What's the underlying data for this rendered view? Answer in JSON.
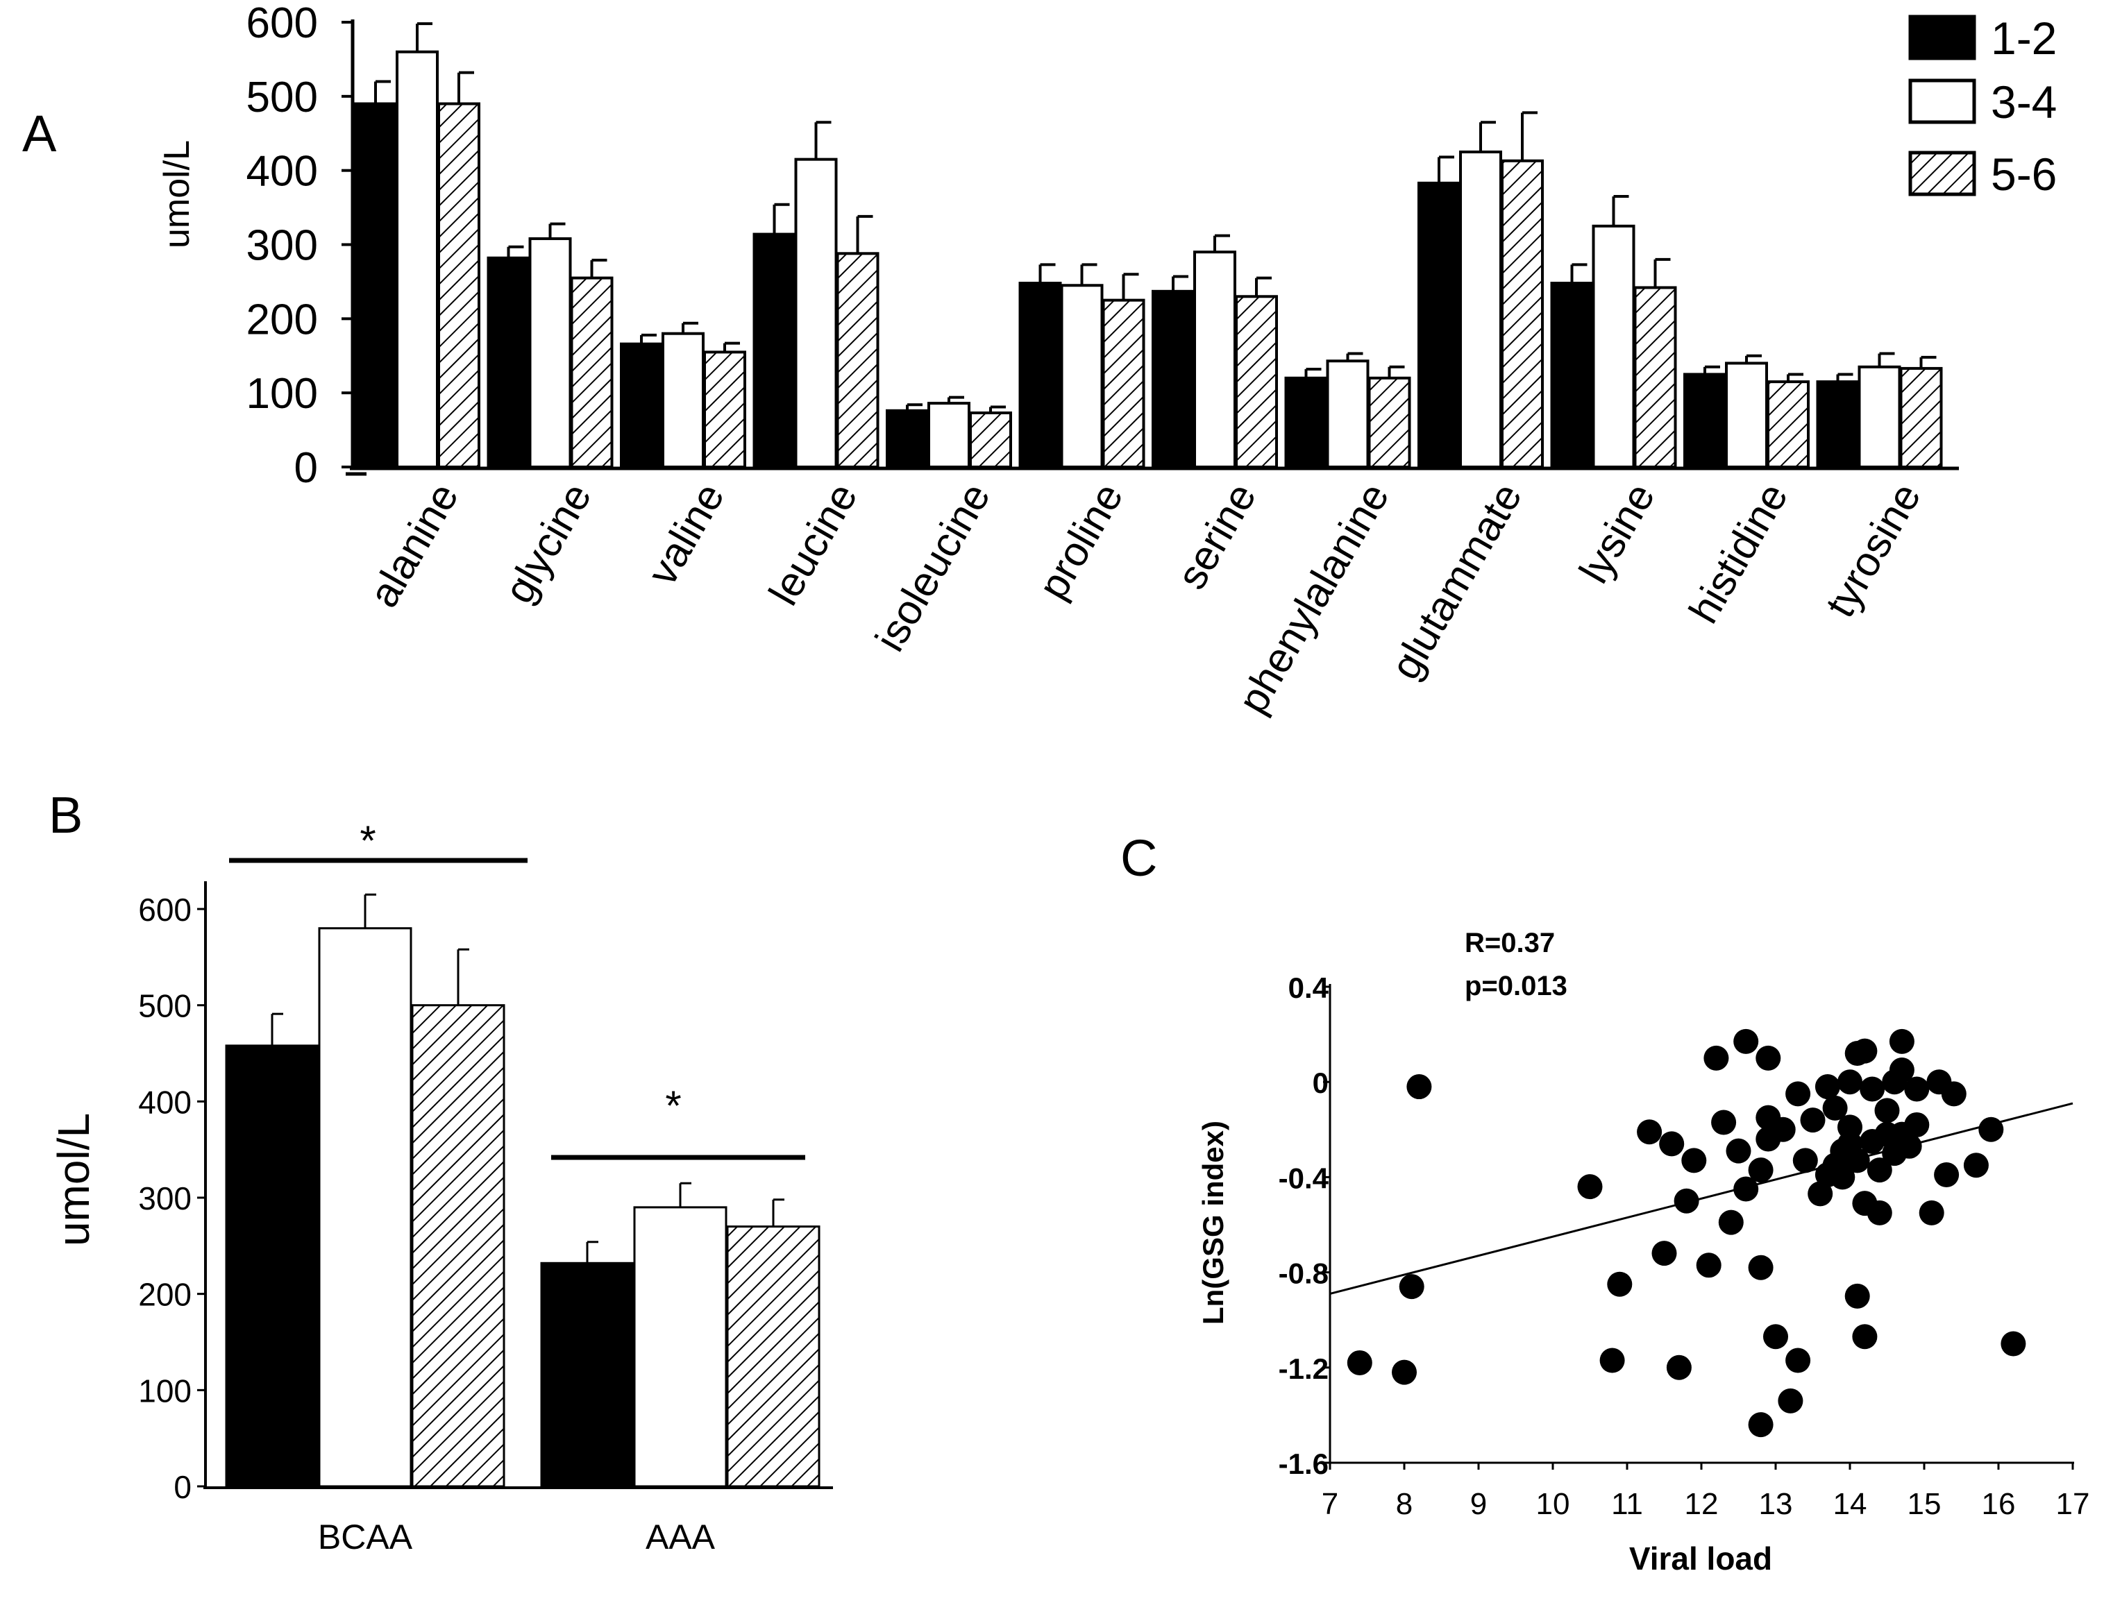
{
  "chart_data": [
    {
      "panel": "A",
      "type": "bar",
      "ylabel": "umol/L",
      "ylim": [
        0,
        600
      ],
      "yticks": [
        0,
        100,
        200,
        300,
        400,
        500,
        600
      ],
      "categories": [
        "alanine",
        "glycine",
        "valine",
        "leucine",
        "isoleucine",
        "proline",
        "serine",
        "phenylalanine",
        "glutammate",
        "lysine",
        "histidine",
        "tyrosine"
      ],
      "series": [
        {
          "name": "1-2",
          "fill": "solid",
          "values": [
            490,
            282,
            166,
            314,
            76,
            248,
            237,
            120,
            383,
            248,
            125,
            115
          ],
          "errors": [
            30,
            15,
            12,
            40,
            8,
            25,
            20,
            12,
            35,
            25,
            10,
            10
          ]
        },
        {
          "name": "3-4",
          "fill": "open",
          "values": [
            560,
            308,
            180,
            415,
            86,
            245,
            290,
            143,
            425,
            325,
            140,
            135
          ],
          "errors": [
            38,
            20,
            14,
            50,
            8,
            28,
            22,
            10,
            40,
            40,
            10,
            18
          ]
        },
        {
          "name": "5-6",
          "fill": "hatched",
          "values": [
            490,
            255,
            155,
            288,
            73,
            225,
            230,
            120,
            413,
            242,
            115,
            133
          ],
          "errors": [
            42,
            24,
            12,
            50,
            8,
            35,
            25,
            15,
            65,
            38,
            10,
            15
          ]
        }
      ],
      "legend": {
        "position": "top-right",
        "entries": [
          "1-2",
          "3-4",
          "5-6"
        ]
      },
      "colors": {
        "solid": "#000000",
        "open": "#ffffff",
        "hatch_line": "#000000"
      }
    },
    {
      "panel": "B",
      "type": "bar",
      "ylabel": "umol/L",
      "ylim": [
        0,
        600
      ],
      "yticks": [
        0,
        100,
        200,
        300,
        400,
        500,
        600
      ],
      "categories": [
        "BCAA",
        "AAA"
      ],
      "series": [
        {
          "name": "1-2",
          "fill": "solid",
          "values": [
            458,
            232
          ],
          "errors": [
            33,
            22
          ]
        },
        {
          "name": "3-4",
          "fill": "open",
          "values": [
            580,
            290
          ],
          "errors": [
            35,
            25
          ]
        },
        {
          "name": "5-6",
          "fill": "hatched",
          "values": [
            500,
            270
          ],
          "errors": [
            58,
            28
          ]
        }
      ],
      "annotations": [
        {
          "text": "*",
          "category": "BCAA"
        },
        {
          "text": "*",
          "category": "AAA"
        }
      ]
    },
    {
      "panel": "C",
      "type": "scatter",
      "xlabel": "Viral load",
      "ylabel": "Ln(GSG index)",
      "xlim": [
        7,
        17
      ],
      "ylim": [
        -1.6,
        0.4
      ],
      "xticks": [
        7,
        8,
        9,
        10,
        11,
        12,
        13,
        14,
        15,
        16,
        17
      ],
      "yticks": [
        {
          "value": 0.4,
          "label": "0.4"
        },
        {
          "value": 0,
          "label": "0"
        },
        {
          "value": -0.4,
          "label": "-0.4"
        },
        {
          "value": -0.8,
          "label": "-0.8"
        },
        {
          "value": -1.2,
          "label": "-1.2"
        },
        {
          "value": -1.6,
          "label": "-1.6"
        }
      ],
      "annotations": [
        "R=0.37",
        "p=0.013"
      ],
      "trendline": {
        "x": [
          7,
          17
        ],
        "y": [
          -0.89,
          -0.09
        ]
      },
      "points": [
        [
          8.2,
          -0.02
        ],
        [
          7.4,
          -1.18
        ],
        [
          8.0,
          -1.22
        ],
        [
          8.1,
          -0.86
        ],
        [
          10.5,
          -0.44
        ],
        [
          10.8,
          -1.17
        ],
        [
          10.9,
          -0.85
        ],
        [
          11.3,
          -0.21
        ],
        [
          11.5,
          -0.72
        ],
        [
          11.6,
          -0.26
        ],
        [
          11.7,
          -1.2
        ],
        [
          11.8,
          -0.5
        ],
        [
          11.9,
          -0.33
        ],
        [
          12.1,
          -0.77
        ],
        [
          12.2,
          0.1
        ],
        [
          12.3,
          -0.17
        ],
        [
          12.4,
          -0.59
        ],
        [
          12.5,
          -0.29
        ],
        [
          12.6,
          0.17
        ],
        [
          12.6,
          -0.45
        ],
        [
          12.8,
          -0.37
        ],
        [
          12.8,
          -0.78
        ],
        [
          12.9,
          -0.15
        ],
        [
          12.9,
          -0.24
        ],
        [
          12.9,
          0.1
        ],
        [
          13.0,
          -1.07
        ],
        [
          13.1,
          -0.2
        ],
        [
          13.2,
          -1.34
        ],
        [
          12.8,
          -1.44
        ],
        [
          13.3,
          -1.17
        ],
        [
          13.3,
          -0.05
        ],
        [
          13.4,
          -0.33
        ],
        [
          13.5,
          -0.16
        ],
        [
          13.6,
          -0.47
        ],
        [
          13.7,
          -0.39
        ],
        [
          13.7,
          -0.02
        ],
        [
          13.8,
          -0.11
        ],
        [
          13.8,
          -0.35
        ],
        [
          13.9,
          -0.29
        ],
        [
          13.9,
          -0.4
        ],
        [
          14.0,
          0.0
        ],
        [
          14.0,
          -0.19
        ],
        [
          14.0,
          -0.26
        ],
        [
          14.1,
          0.12
        ],
        [
          14.1,
          -0.33
        ],
        [
          14.1,
          -0.9
        ],
        [
          14.2,
          0.13
        ],
        [
          14.2,
          -0.51
        ],
        [
          14.2,
          -1.07
        ],
        [
          14.3,
          -0.03
        ],
        [
          14.3,
          -0.25
        ],
        [
          14.4,
          -0.37
        ],
        [
          14.4,
          -0.55
        ],
        [
          14.5,
          -0.12
        ],
        [
          14.5,
          -0.22
        ],
        [
          14.6,
          0.0
        ],
        [
          14.6,
          -0.3
        ],
        [
          14.7,
          0.05
        ],
        [
          14.7,
          0.17
        ],
        [
          14.7,
          -0.22
        ],
        [
          14.8,
          -0.27
        ],
        [
          14.9,
          -0.18
        ],
        [
          14.9,
          -0.03
        ],
        [
          15.1,
          -0.55
        ],
        [
          15.2,
          0.0
        ],
        [
          15.3,
          -0.39
        ],
        [
          15.4,
          -0.05
        ],
        [
          15.7,
          -0.35
        ],
        [
          15.9,
          -0.2
        ],
        [
          16.2,
          -1.1
        ]
      ]
    }
  ],
  "panel_labels": [
    "A",
    "B",
    "C"
  ]
}
